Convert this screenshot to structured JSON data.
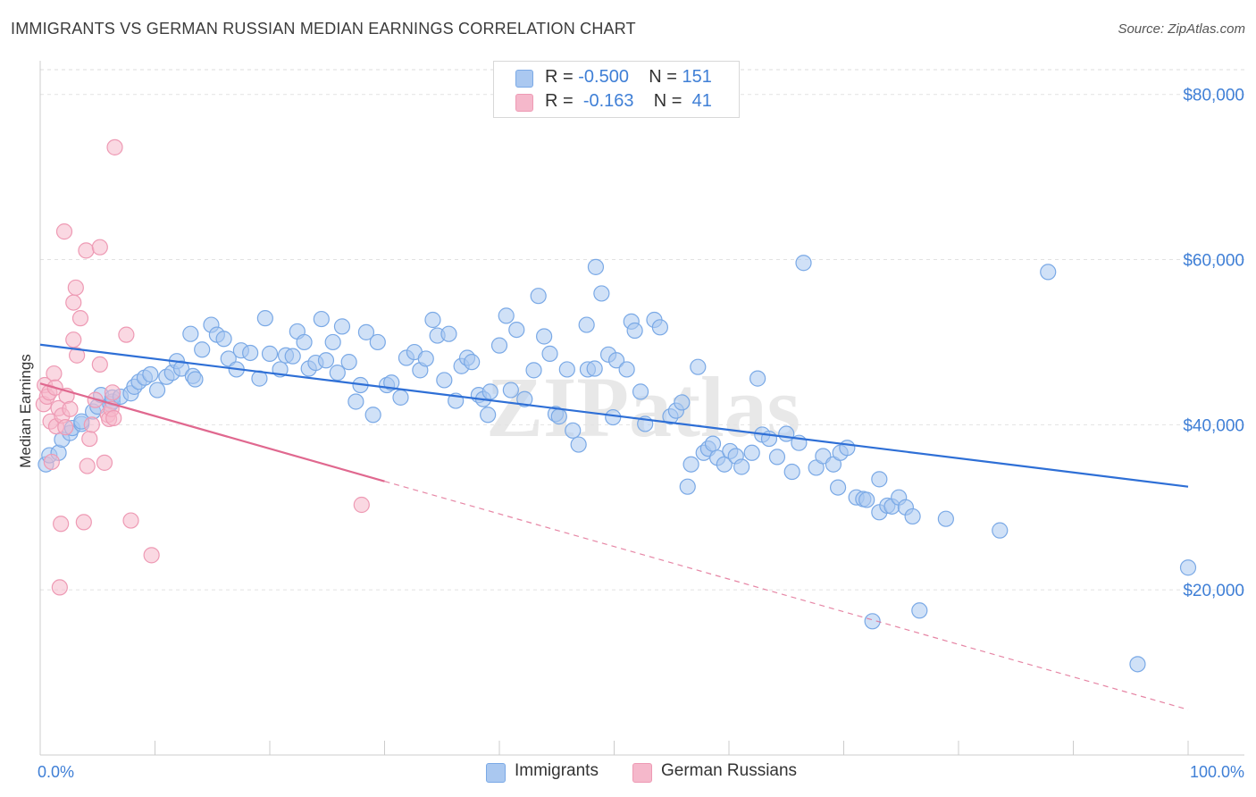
{
  "title": "IMMIGRANTS VS GERMAN RUSSIAN MEDIAN EARNINGS CORRELATION CHART",
  "source": "Source: ZipAtlas.com",
  "watermark": {
    "text": "ZIPatlas"
  },
  "legend": {
    "rows": [
      {
        "r_label": "R =",
        "r_value": "-0.500",
        "n_label": "N =",
        "n_value": "151",
        "color": "#aac8f0"
      },
      {
        "r_label": "R =",
        "r_value": "-0.163",
        "n_label": "N =",
        "n_value": "41",
        "color": "#f5b8cb"
      }
    ]
  },
  "bottom_legend": [
    {
      "label": "Immigrants",
      "color": "#aac8f0"
    },
    {
      "label": "German Russians",
      "color": "#f5b8cb"
    }
  ],
  "chart_data": {
    "type": "scatter",
    "title": "IMMIGRANTS VS GERMAN RUSSIAN MEDIAN EARNINGS CORRELATION CHART",
    "xlabel": "",
    "ylabel": "Median Earnings",
    "xlim": [
      0,
      100
    ],
    "ylim": [
      0,
      83000
    ],
    "x_tick_labels": [
      "0.0%",
      "100.0%"
    ],
    "y_ticks": [
      20000,
      40000,
      60000,
      80000
    ],
    "y_tick_labels": [
      "$20,000",
      "$40,000",
      "$60,000",
      "$80,000"
    ],
    "grid": true,
    "series": [
      {
        "name": "Immigrants",
        "color": "#7aa9e6",
        "fill": "#aac8f0",
        "trend": {
          "x0": 0,
          "y0": 49700,
          "x1": 100,
          "y1": 32500,
          "dashed_from": null,
          "color": "#2e6fd6"
        },
        "points": [
          [
            0.5,
            35200
          ],
          [
            0.8,
            36300
          ],
          [
            1.6,
            36600
          ],
          [
            1.9,
            38200
          ],
          [
            2.6,
            39000
          ],
          [
            2.8,
            39600
          ],
          [
            3.6,
            40100
          ],
          [
            3.6,
            40400
          ],
          [
            4.6,
            41600
          ],
          [
            5.0,
            42200
          ],
          [
            5.3,
            43600
          ],
          [
            6.1,
            42500
          ],
          [
            6.3,
            42800
          ],
          [
            6.3,
            43300
          ],
          [
            7.0,
            43400
          ],
          [
            7.9,
            43800
          ],
          [
            8.2,
            44600
          ],
          [
            8.6,
            45200
          ],
          [
            9.1,
            45700
          ],
          [
            9.6,
            46100
          ],
          [
            10.2,
            44200
          ],
          [
            11.0,
            45800
          ],
          [
            11.5,
            46300
          ],
          [
            11.9,
            47700
          ],
          [
            12.3,
            46800
          ],
          [
            13.3,
            45900
          ],
          [
            13.5,
            45500
          ],
          [
            13.1,
            51000
          ],
          [
            14.1,
            49100
          ],
          [
            14.9,
            52100
          ],
          [
            15.4,
            50900
          ],
          [
            16.0,
            50400
          ],
          [
            16.4,
            48000
          ],
          [
            17.1,
            46700
          ],
          [
            17.5,
            49000
          ],
          [
            18.3,
            48700
          ],
          [
            19.1,
            45600
          ],
          [
            19.6,
            52900
          ],
          [
            20.0,
            48600
          ],
          [
            20.9,
            46700
          ],
          [
            21.4,
            48400
          ],
          [
            22.0,
            48300
          ],
          [
            22.4,
            51300
          ],
          [
            23.0,
            50000
          ],
          [
            23.4,
            46800
          ],
          [
            24.0,
            47500
          ],
          [
            24.5,
            52800
          ],
          [
            24.9,
            47800
          ],
          [
            25.5,
            50000
          ],
          [
            25.9,
            46300
          ],
          [
            26.3,
            51900
          ],
          [
            26.9,
            47600
          ],
          [
            27.5,
            42800
          ],
          [
            27.9,
            44800
          ],
          [
            28.4,
            51200
          ],
          [
            29.4,
            50000
          ],
          [
            29.0,
            41200
          ],
          [
            30.2,
            44800
          ],
          [
            30.6,
            45100
          ],
          [
            31.4,
            43300
          ],
          [
            31.9,
            48100
          ],
          [
            32.6,
            48800
          ],
          [
            33.1,
            46600
          ],
          [
            33.6,
            48000
          ],
          [
            34.2,
            52700
          ],
          [
            34.6,
            50800
          ],
          [
            35.2,
            45400
          ],
          [
            35.6,
            51000
          ],
          [
            36.2,
            42900
          ],
          [
            36.7,
            47100
          ],
          [
            37.2,
            48100
          ],
          [
            37.6,
            47600
          ],
          [
            38.2,
            43600
          ],
          [
            38.6,
            43100
          ],
          [
            39.2,
            44000
          ],
          [
            39.0,
            41200
          ],
          [
            40.0,
            49600
          ],
          [
            40.6,
            53200
          ],
          [
            41.0,
            44200
          ],
          [
            41.5,
            51500
          ],
          [
            42.2,
            43100
          ],
          [
            43.0,
            46600
          ],
          [
            43.4,
            55600
          ],
          [
            43.9,
            50700
          ],
          [
            44.4,
            48600
          ],
          [
            44.9,
            41300
          ],
          [
            45.2,
            41000
          ],
          [
            45.9,
            46700
          ],
          [
            46.4,
            39300
          ],
          [
            46.9,
            37600
          ],
          [
            47.6,
            52100
          ],
          [
            47.7,
            46700
          ],
          [
            48.3,
            46800
          ],
          [
            48.4,
            59100
          ],
          [
            48.9,
            55900
          ],
          [
            49.5,
            48500
          ],
          [
            49.9,
            40900
          ],
          [
            50.2,
            47800
          ],
          [
            51.1,
            46700
          ],
          [
            51.5,
            52500
          ],
          [
            51.8,
            51400
          ],
          [
            52.3,
            44000
          ],
          [
            52.7,
            40100
          ],
          [
            53.5,
            52700
          ],
          [
            54.0,
            51800
          ],
          [
            54.9,
            41000
          ],
          [
            55.4,
            41700
          ],
          [
            55.9,
            42700
          ],
          [
            56.4,
            32500
          ],
          [
            56.7,
            35200
          ],
          [
            57.3,
            47000
          ],
          [
            57.8,
            36600
          ],
          [
            58.2,
            37100
          ],
          [
            58.6,
            37700
          ],
          [
            59.0,
            36000
          ],
          [
            59.6,
            35200
          ],
          [
            60.1,
            36800
          ],
          [
            60.6,
            36200
          ],
          [
            61.1,
            34900
          ],
          [
            62.0,
            36600
          ],
          [
            62.5,
            45600
          ],
          [
            62.9,
            38800
          ],
          [
            63.5,
            38300
          ],
          [
            64.2,
            36100
          ],
          [
            65.0,
            38900
          ],
          [
            65.5,
            34300
          ],
          [
            66.1,
            37800
          ],
          [
            66.5,
            59600
          ],
          [
            67.6,
            34800
          ],
          [
            68.2,
            36200
          ],
          [
            69.1,
            35200
          ],
          [
            69.5,
            32400
          ],
          [
            69.7,
            36600
          ],
          [
            70.3,
            37200
          ],
          [
            71.1,
            31200
          ],
          [
            71.7,
            31000
          ],
          [
            72.5,
            16200
          ],
          [
            73.1,
            29400
          ],
          [
            73.1,
            33400
          ],
          [
            73.8,
            30200
          ],
          [
            74.2,
            30100
          ],
          [
            74.8,
            31200
          ],
          [
            75.4,
            30000
          ],
          [
            76.0,
            28900
          ],
          [
            76.6,
            17500
          ],
          [
            78.9,
            28600
          ],
          [
            83.6,
            27200
          ],
          [
            87.8,
            58500
          ],
          [
            95.6,
            11000
          ],
          [
            100.0,
            22700
          ],
          [
            72.0,
            30900
          ]
        ]
      },
      {
        "name": "German Russians",
        "color": "#ee9ab4",
        "fill": "#f5b8cb",
        "trend": {
          "x0": 0,
          "y0": 45000,
          "x1": 100,
          "y1": 5500,
          "solid_until": 30,
          "color": "#e0688f"
        },
        "points": [
          [
            0.3,
            42500
          ],
          [
            0.4,
            44800
          ],
          [
            0.6,
            43400
          ],
          [
            0.8,
            43900
          ],
          [
            0.9,
            40400
          ],
          [
            1.0,
            35500
          ],
          [
            1.2,
            46200
          ],
          [
            1.3,
            44500
          ],
          [
            1.4,
            39800
          ],
          [
            1.6,
            42000
          ],
          [
            1.8,
            28000
          ],
          [
            1.7,
            20300
          ],
          [
            1.9,
            41100
          ],
          [
            2.1,
            63400
          ],
          [
            2.2,
            39700
          ],
          [
            2.3,
            43500
          ],
          [
            2.6,
            41900
          ],
          [
            2.9,
            54800
          ],
          [
            2.9,
            50300
          ],
          [
            3.1,
            56600
          ],
          [
            3.2,
            48400
          ],
          [
            3.5,
            52900
          ],
          [
            3.8,
            28200
          ],
          [
            4.0,
            61100
          ],
          [
            4.1,
            35000
          ],
          [
            4.3,
            38300
          ],
          [
            4.5,
            40000
          ],
          [
            5.2,
            61500
          ],
          [
            5.2,
            47300
          ],
          [
            5.6,
            35400
          ],
          [
            5.9,
            41200
          ],
          [
            6.0,
            40700
          ],
          [
            6.2,
            41900
          ],
          [
            6.3,
            43900
          ],
          [
            6.4,
            40800
          ],
          [
            6.5,
            73600
          ],
          [
            7.5,
            50900
          ],
          [
            7.9,
            28400
          ],
          [
            9.7,
            24200
          ],
          [
            28.0,
            30300
          ],
          [
            4.8,
            43000
          ]
        ]
      }
    ]
  }
}
